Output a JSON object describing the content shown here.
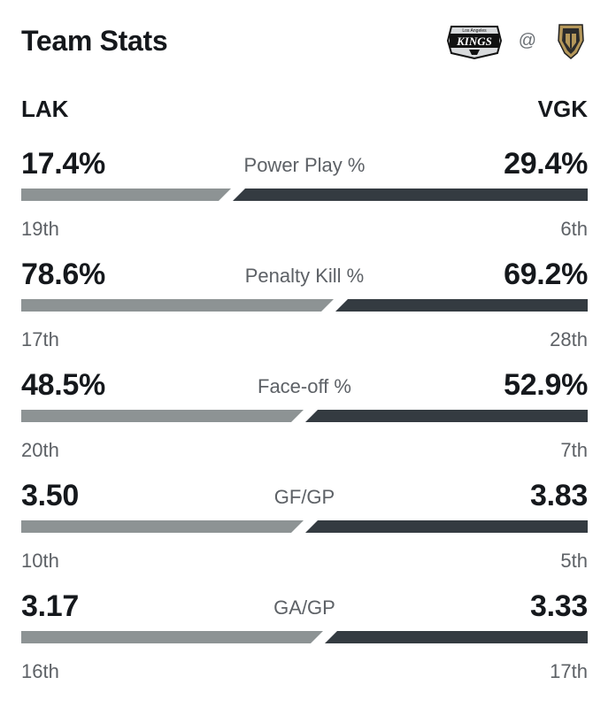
{
  "header": {
    "title": "Team Stats",
    "at_symbol": "@",
    "away_logo_text": "KINGS",
    "away_logo_subtext": "Los Angeles"
  },
  "teams": {
    "away_abbr": "LAK",
    "home_abbr": "VGK"
  },
  "colors": {
    "away_bar": "#8d9394",
    "home_bar": "#343b41",
    "vgk_gold": "#b4975a"
  },
  "stats": [
    {
      "label": "Power Play %",
      "away_value": "17.4%",
      "home_value": "29.4%",
      "away_rank": "19th",
      "home_rank": "6th",
      "away_share": 0.372
    },
    {
      "label": "Penalty Kill %",
      "away_value": "78.6%",
      "home_value": "69.2%",
      "away_rank": "17th",
      "home_rank": "28th",
      "away_share": 0.553
    },
    {
      "label": "Face-off %",
      "away_value": "48.5%",
      "home_value": "52.9%",
      "away_rank": "20th",
      "home_rank": "7th",
      "away_share": 0.5
    },
    {
      "label": "GF/GP",
      "away_value": "3.50",
      "home_value": "3.83",
      "away_rank": "10th",
      "home_rank": "5th",
      "away_share": 0.5
    },
    {
      "label": "GA/GP",
      "away_value": "3.17",
      "home_value": "3.33",
      "away_rank": "16th",
      "home_rank": "17th",
      "away_share": 0.534
    }
  ]
}
